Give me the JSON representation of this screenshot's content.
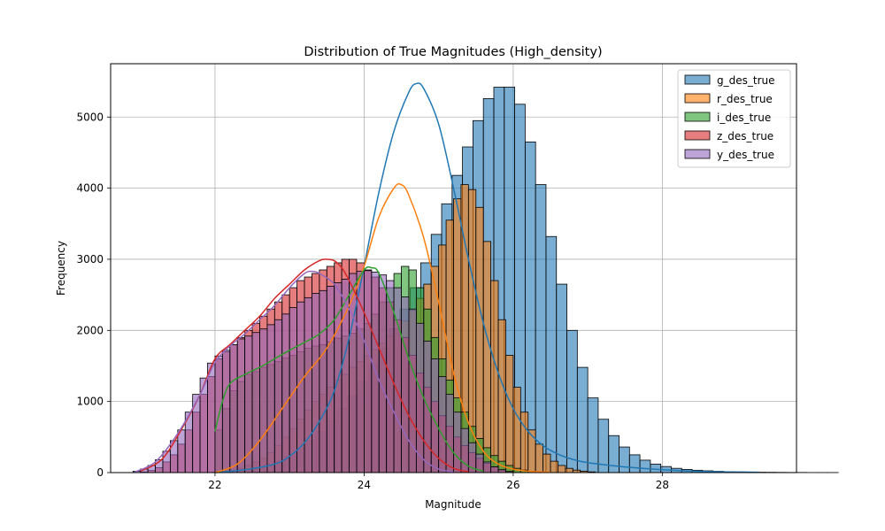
{
  "chart_data": {
    "type": "bar",
    "subtype": "histogram-with-kde",
    "title": "Distribution of True Magnitudes (High_density)",
    "xlabel": "Magnitude",
    "ylabel": "Frequency",
    "xlim": [
      20.6,
      29.8
    ],
    "ylim": [
      0,
      5750
    ],
    "xticks": [
      22,
      24,
      26,
      28
    ],
    "yticks": [
      0,
      1000,
      2000,
      3000,
      4000,
      5000
    ],
    "grid": true,
    "legend_position": "top-right",
    "series": [
      {
        "name": "g_des_true",
        "color": "#1f77b4",
        "bin_width": 0.14,
        "bin_start": 21.96,
        "counts": [
          6,
          12,
          25,
          45,
          70,
          110,
          160,
          230,
          330,
          450,
          580,
          730,
          900,
          1080,
          1280,
          1500,
          1750,
          2020,
          2300,
          2600,
          2950,
          3350,
          3780,
          4180,
          4580,
          4950,
          5260,
          5420,
          5420,
          5180,
          4650,
          4050,
          3320,
          2650,
          2000,
          1480,
          1050,
          750,
          520,
          360,
          250,
          175,
          120,
          85,
          60,
          45,
          33,
          25,
          18,
          13,
          9,
          7,
          5,
          4,
          3,
          2,
          2,
          1,
          1,
          1
        ],
        "kde_x": [
          22.0,
          22.4,
          22.8,
          23.0,
          23.2,
          23.4,
          23.6,
          23.8,
          24.0,
          24.2,
          24.4,
          24.6,
          24.7,
          24.8,
          25.0,
          25.2,
          25.4,
          25.6,
          25.8,
          26.0,
          26.2,
          26.4,
          26.6,
          26.8,
          27.0,
          27.4,
          27.8,
          28.2,
          28.6,
          29.0,
          29.3
        ],
        "kde_y": [
          0,
          40,
          120,
          230,
          420,
          720,
          1150,
          1900,
          2900,
          3950,
          4800,
          5350,
          5470,
          5400,
          4900,
          4000,
          3000,
          2100,
          1400,
          900,
          580,
          380,
          260,
          185,
          140,
          90,
          55,
          30,
          15,
          8,
          4
        ]
      },
      {
        "name": "r_des_true",
        "color": "#ff7f0e",
        "bin_width": 0.1,
        "bin_start": 22.0,
        "counts": [
          0,
          10,
          30,
          60,
          100,
          150,
          200,
          280,
          380,
          500,
          620,
          750,
          880,
          1000,
          1100,
          1200,
          1300,
          1380,
          1480,
          1560,
          1640,
          1730,
          1820,
          1920,
          2020,
          2130,
          2280,
          2450,
          2650,
          2900,
          3200,
          3550,
          3850,
          4050,
          3980,
          3730,
          3250,
          2700,
          2150,
          1650,
          1200,
          850,
          600,
          400,
          260,
          160,
          100,
          60,
          35,
          20,
          10
        ],
        "kde_x": [
          22.0,
          22.3,
          22.6,
          22.9,
          23.2,
          23.5,
          23.8,
          24.0,
          24.2,
          24.4,
          24.5,
          24.6,
          24.8,
          25.0,
          25.2,
          25.4,
          25.6,
          25.8,
          26.0,
          26.2,
          26.5
        ],
        "kde_y": [
          0,
          120,
          450,
          900,
          1350,
          1750,
          2350,
          2900,
          3600,
          4000,
          4050,
          3900,
          3300,
          2400,
          1400,
          700,
          300,
          120,
          50,
          20,
          5
        ]
      },
      {
        "name": "i_des_true",
        "color": "#2ca02c",
        "bin_width": 0.1,
        "bin_start": 22.0,
        "counts": [
          600,
          900,
          1150,
          1280,
          1380,
          1420,
          1480,
          1520,
          1560,
          1610,
          1650,
          1700,
          1750,
          1780,
          1800,
          1840,
          1890,
          1920,
          1960,
          2020,
          2100,
          2230,
          2400,
          2600,
          2800,
          2900,
          2850,
          2600,
          2300,
          1900,
          1600,
          1300,
          1050,
          850,
          650,
          480,
          350,
          240,
          160,
          100,
          60,
          35,
          20,
          10
        ],
        "kde_x": [
          22.0,
          22.1,
          22.2,
          22.4,
          22.6,
          22.8,
          23.0,
          23.2,
          23.4,
          23.6,
          23.8,
          24.0,
          24.1,
          24.2,
          24.4,
          24.6,
          24.8,
          25.0,
          25.2,
          25.4,
          25.6
        ],
        "kde_y": [
          580,
          1000,
          1250,
          1380,
          1480,
          1600,
          1720,
          1830,
          1950,
          2150,
          2500,
          2850,
          2880,
          2800,
          2250,
          1600,
          1050,
          620,
          280,
          90,
          20
        ]
      },
      {
        "name": "z_des_true",
        "color": "#d62728",
        "bin_width": 0.1,
        "bin_start": 21.0,
        "counts": [
          10,
          30,
          70,
          150,
          250,
          400,
          600,
          850,
          1100,
          1350,
          1600,
          1700,
          1800,
          1900,
          2000,
          2100,
          2200,
          2300,
          2400,
          2500,
          2600,
          2700,
          2750,
          2800,
          2850,
          2900,
          2950,
          3000,
          3000,
          2950,
          2850,
          2750,
          2600,
          2400,
          2150,
          1900,
          1650,
          1400,
          1200,
          1000,
          800,
          650,
          500,
          380,
          280,
          200,
          130,
          80,
          40,
          15
        ],
        "kde_x": [
          21.0,
          21.3,
          21.6,
          21.8,
          22.0,
          22.2,
          22.4,
          22.6,
          22.8,
          23.0,
          23.2,
          23.4,
          23.5,
          23.6,
          23.7,
          23.8,
          24.0,
          24.2,
          24.4,
          24.6,
          24.8,
          25.0,
          25.2,
          25.4
        ],
        "kde_y": [
          20,
          200,
          700,
          1100,
          1600,
          1800,
          2000,
          2200,
          2450,
          2650,
          2850,
          2980,
          3000,
          2980,
          2880,
          2700,
          2250,
          1750,
          1250,
          800,
          450,
          200,
          60,
          10
        ]
      },
      {
        "name": "y_des_true",
        "color": "#9467bd",
        "bin_width": 0.1,
        "bin_start": 20.9,
        "counts": [
          20,
          50,
          100,
          180,
          300,
          450,
          600,
          850,
          1100,
          1330,
          1540,
          1640,
          1720,
          1800,
          1880,
          1920,
          1970,
          2020,
          2080,
          2150,
          2230,
          2320,
          2400,
          2460,
          2520,
          2560,
          2620,
          2670,
          2720,
          2800,
          2830,
          2840,
          2820,
          2780,
          2700,
          2600,
          2470,
          2300,
          2100,
          1850,
          1600,
          1350,
          1100,
          850,
          620,
          420,
          260,
          150,
          80,
          40,
          15
        ],
        "kde_x": [
          20.9,
          21.2,
          21.5,
          21.8,
          22.0,
          22.2,
          22.4,
          22.6,
          22.8,
          23.0,
          23.2,
          23.3,
          23.4,
          23.6,
          23.8,
          24.0,
          24.2,
          24.4,
          24.6,
          24.8,
          25.0,
          25.2
        ],
        "kde_y": [
          0,
          150,
          550,
          1100,
          1550,
          1780,
          1950,
          2150,
          2350,
          2600,
          2800,
          2830,
          2800,
          2650,
          2300,
          1850,
          1300,
          850,
          450,
          180,
          50,
          10
        ]
      }
    ]
  }
}
